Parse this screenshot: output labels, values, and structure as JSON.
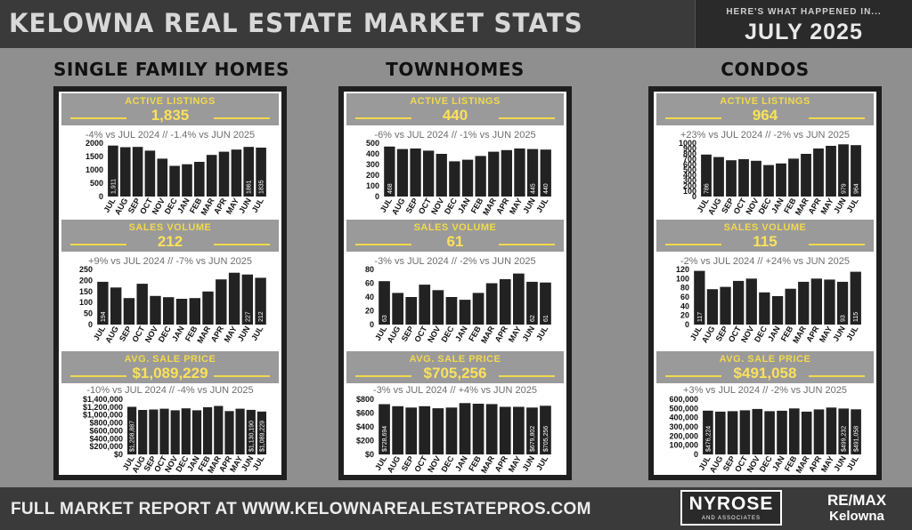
{
  "header": {
    "title": "KELOWNA REAL ESTATE MARKET STATS",
    "subtitle": "HERE'S WHAT HAPPENED IN...",
    "month": "JULY 2025"
  },
  "footer": {
    "report_text": "FULL MARKET REPORT AT WWW.KELOWNAREALESTATEPROS.COM",
    "logo_nyrose": "NYROSE",
    "logo_nyrose_sub": "AND ASSOCIATES",
    "logo_remax_top": "RE/MAX",
    "logo_remax_bottom": "Kelowna"
  },
  "colors": {
    "bar": "#222222",
    "accent": "#f2d94c",
    "header_bg": "#9a9a9a"
  },
  "columns": [
    {
      "title": "SINGLE FAMILY HOMES"
    },
    {
      "title": "TOWNHOMES"
    },
    {
      "title": "CONDOS"
    }
  ],
  "chart_data": [
    {
      "type": "bar",
      "group": "SINGLE FAMILY HOMES",
      "title": "ACTIVE LISTINGS",
      "headline_value": "1,835",
      "comparison": "-4% vs JUL 2024 // -1.4% vs JUN 2025",
      "categories": [
        "JUL",
        "AUG",
        "SEP",
        "OCT",
        "NOV",
        "DEC",
        "JAN",
        "FEB",
        "MAR",
        "APR",
        "MAY",
        "JUN",
        "JUL"
      ],
      "values": [
        1911,
        1850,
        1860,
        1720,
        1420,
        1150,
        1210,
        1300,
        1560,
        1680,
        1760,
        1861,
        1835
      ],
      "data_labels": [
        "1,911",
        "",
        "",
        "",
        "",
        "",
        "",
        "",
        "",
        "",
        "",
        "1861",
        "1835"
      ],
      "yticks": [
        "2000",
        "1500",
        "1000",
        "500",
        "0"
      ],
      "ylim": [
        0,
        2000
      ]
    },
    {
      "type": "bar",
      "group": "SINGLE FAMILY HOMES",
      "title": "SALES VOLUME",
      "headline_value": "212",
      "comparison": "+9% vs  JUL 2024 // -7% vs JUN 2025",
      "categories": [
        "JUL",
        "AUG",
        "SEP",
        "OCT",
        "NOV",
        "DEC",
        "JAN",
        "FEB",
        "MAR",
        "APR",
        "MAY",
        "JUN",
        "JUL"
      ],
      "values": [
        194,
        168,
        120,
        185,
        130,
        124,
        117,
        120,
        150,
        205,
        235,
        227,
        212
      ],
      "data_labels": [
        "194",
        "",
        "",
        "",
        "",
        "",
        "",
        "",
        "",
        "",
        "",
        "227",
        "212"
      ],
      "yticks": [
        "250",
        "200",
        "150",
        "100",
        "50",
        "0"
      ],
      "ylim": [
        0,
        250
      ]
    },
    {
      "type": "bar",
      "group": "SINGLE FAMILY HOMES",
      "title": "AVG. SALE PRICE",
      "headline_value": "$1,089,229",
      "comparison": "-10% vs JUL 2024 // -4% vs JUN 2025",
      "categories": [
        "JUL",
        "AUG",
        "SEP",
        "OCT",
        "NOV",
        "DEC",
        "JAN",
        "FEB",
        "MAR",
        "APR",
        "MAY",
        "JUN",
        "JUL"
      ],
      "values": [
        1208887,
        1130000,
        1140000,
        1160000,
        1120000,
        1170000,
        1120000,
        1200000,
        1230000,
        1100000,
        1160000,
        1130190,
        1089229
      ],
      "data_labels": [
        "$1,208,887",
        "",
        "",
        "",
        "",
        "",
        "",
        "",
        "",
        "",
        "",
        "$1,130,190",
        "$1,089,229"
      ],
      "yticks": [
        "$1,400,000",
        "$1,200,000",
        "$1,000,000",
        "$800,000",
        "$600,000",
        "$400,000",
        "$200,000",
        "$0"
      ],
      "ylim": [
        0,
        1400000
      ]
    },
    {
      "type": "bar",
      "group": "TOWNHOMES",
      "title": "ACTIVE LISTINGS",
      "headline_value": "440",
      "comparison": "-6% vs JUL 2024 // -1% vs JUN 2025",
      "categories": [
        "JUL",
        "AUG",
        "SEP",
        "OCT",
        "NOV",
        "DEC",
        "JAN",
        "FEB",
        "MAR",
        "APR",
        "MAY",
        "JUN",
        "JUL"
      ],
      "values": [
        468,
        445,
        450,
        430,
        400,
        330,
        345,
        380,
        420,
        435,
        450,
        445,
        440
      ],
      "data_labels": [
        "468",
        "",
        "",
        "",
        "",
        "",
        "",
        "",
        "",
        "",
        "",
        "445",
        "440"
      ],
      "yticks": [
        "500",
        "400",
        "300",
        "200",
        "100",
        "0"
      ],
      "ylim": [
        0,
        500
      ]
    },
    {
      "type": "bar",
      "group": "TOWNHOMES",
      "title": "SALES VOLUME",
      "headline_value": "61",
      "comparison": "-3% vs  JUL 2024 // -2% vs JUN 2025",
      "categories": [
        "JUL",
        "AUG",
        "SEP",
        "OCT",
        "NOV",
        "DEC",
        "JAN",
        "FEB",
        "MAR",
        "APR",
        "MAY",
        "JUN",
        "JUL"
      ],
      "values": [
        63,
        46,
        40,
        58,
        50,
        40,
        36,
        46,
        60,
        66,
        74,
        62,
        61
      ],
      "data_labels": [
        "63",
        "",
        "",
        "",
        "",
        "",
        "",
        "",
        "",
        "",
        "",
        "62",
        "61"
      ],
      "yticks": [
        "80",
        "60",
        "40",
        "20",
        "0"
      ],
      "ylim": [
        0,
        80
      ]
    },
    {
      "type": "bar",
      "group": "TOWNHOMES",
      "title": "AVG. SALE PRICE",
      "headline_value": "$705,256",
      "comparison": "-3% vs  JUL 2024 // +4% vs JUN 2025",
      "categories": [
        "JUL",
        "AUG",
        "SEP",
        "OCT",
        "NOV",
        "DEC",
        "JAN",
        "FEB",
        "MAR",
        "APR",
        "MAY",
        "JUN",
        "JUL"
      ],
      "values": [
        728694,
        700000,
        680000,
        700000,
        670000,
        680000,
        745000,
        735000,
        730000,
        690000,
        690000,
        679802,
        705256
      ],
      "data_labels": [
        "$728,694",
        "",
        "",
        "",
        "",
        "",
        "",
        "",
        "",
        "",
        "",
        "$679,802",
        "$705,256"
      ],
      "yticks": [
        "$800",
        "$600",
        "$400",
        "$200",
        "$0"
      ],
      "ylim": [
        0,
        800000
      ]
    },
    {
      "type": "bar",
      "group": "CONDOS",
      "title": "ACTIVE LISTINGS",
      "headline_value": "964",
      "comparison": "+23% vs JUL 2024 // -2% vs JUN 2025",
      "categories": [
        "JUL",
        "AUG",
        "SEP",
        "OCT",
        "NOV",
        "DEC",
        "JAN",
        "FEB",
        "MAR",
        "APR",
        "MAY",
        "JUN",
        "JUL"
      ],
      "values": [
        786,
        740,
        680,
        700,
        670,
        590,
        620,
        710,
        800,
        900,
        950,
        979,
        964
      ],
      "data_labels": [
        "786",
        "",
        "",
        "",
        "",
        "",
        "",
        "",
        "",
        "",
        "",
        "979",
        "964"
      ],
      "yticks": [
        "1000",
        "900",
        "800",
        "700",
        "600",
        "500",
        "400",
        "300",
        "200",
        "100",
        "0"
      ],
      "ylim": [
        0,
        1000
      ]
    },
    {
      "type": "bar",
      "group": "CONDOS",
      "title": "SALES VOLUME",
      "headline_value": "115",
      "comparison": "-2% vs JUL 2024 // +24% vs JUN 2025",
      "categories": [
        "JUL",
        "AUG",
        "SEP",
        "OCT",
        "NOV",
        "DEC",
        "JAN",
        "FEB",
        "MAR",
        "APR",
        "MAY",
        "JUN",
        "JUL"
      ],
      "values": [
        117,
        77,
        82,
        95,
        100,
        70,
        62,
        78,
        93,
        100,
        98,
        93,
        115
      ],
      "data_labels": [
        "117",
        "",
        "",
        "",
        "",
        "",
        "",
        "",
        "",
        "",
        "",
        "93",
        "115"
      ],
      "yticks": [
        "120",
        "100",
        "80",
        "60",
        "40",
        "20",
        "0"
      ],
      "ylim": [
        0,
        120
      ]
    },
    {
      "type": "bar",
      "group": "CONDOS",
      "title": "AVG. SALE PRICE",
      "headline_value": "$491,058",
      "comparison": "+3% vs JUL 2024 // -2% vs JUN 2025",
      "categories": [
        "JUL",
        "AUG",
        "SEP",
        "OCT",
        "NOV",
        "DEC",
        "JAN",
        "FEB",
        "MAR",
        "APR",
        "MAY",
        "JUN",
        "JUL"
      ],
      "values": [
        476224,
        465000,
        470000,
        480000,
        495000,
        470000,
        475000,
        500000,
        465000,
        490000,
        510000,
        499232,
        491058
      ],
      "data_labels": [
        "$476,224",
        "",
        "",
        "",
        "",
        "",
        "",
        "",
        "",
        "",
        "",
        "$499,232",
        "$491,058"
      ],
      "yticks": [
        "600,000",
        "500,000",
        "400,000",
        "300,000",
        "200,000",
        "100,000",
        "0"
      ],
      "ylim": [
        0,
        600000
      ]
    }
  ]
}
